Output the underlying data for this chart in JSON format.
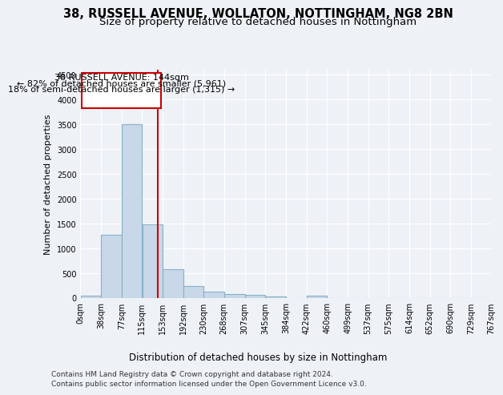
{
  "title1": "38, RUSSELL AVENUE, WOLLATON, NOTTINGHAM, NG8 2BN",
  "title2": "Size of property relative to detached houses in Nottingham",
  "xlabel": "Distribution of detached houses by size in Nottingham",
  "ylabel": "Number of detached properties",
  "bin_edges": [
    0,
    38,
    77,
    115,
    153,
    192,
    230,
    268,
    307,
    345,
    384,
    422,
    460,
    499,
    537,
    575,
    614,
    652,
    690,
    729,
    767
  ],
  "bar_heights": [
    40,
    1270,
    3500,
    1480,
    570,
    235,
    115,
    80,
    55,
    30,
    0,
    45,
    0,
    0,
    0,
    0,
    0,
    0,
    0,
    0
  ],
  "bar_color": "#c8d8e8",
  "bar_edgecolor": "#8ab0c8",
  "bar_linewidth": 0.8,
  "vline_x": 144,
  "vline_color": "#cc0000",
  "vline_linewidth": 1.5,
  "ylim": [
    0,
    4600
  ],
  "yticks": [
    0,
    500,
    1000,
    1500,
    2000,
    2500,
    3000,
    3500,
    4000,
    4500
  ],
  "annotation_title": "38 RUSSELL AVENUE: 144sqm",
  "annotation_line1": "← 82% of detached houses are smaller (5,961)",
  "annotation_line2": "18% of semi-detached houses are larger (1,315) →",
  "annotation_box_color": "#ffffff",
  "annotation_box_edgecolor": "#cc0000",
  "footnote1": "Contains HM Land Registry data © Crown copyright and database right 2024.",
  "footnote2": "Contains public sector information licensed under the Open Government Licence v3.0.",
  "background_color": "#eef2f7",
  "grid_color": "#ffffff",
  "title1_fontsize": 10.5,
  "title2_fontsize": 9.5,
  "xlabel_fontsize": 8.5,
  "ylabel_fontsize": 8,
  "tick_fontsize": 7,
  "annotation_fontsize": 8,
  "footnote_fontsize": 6.5
}
